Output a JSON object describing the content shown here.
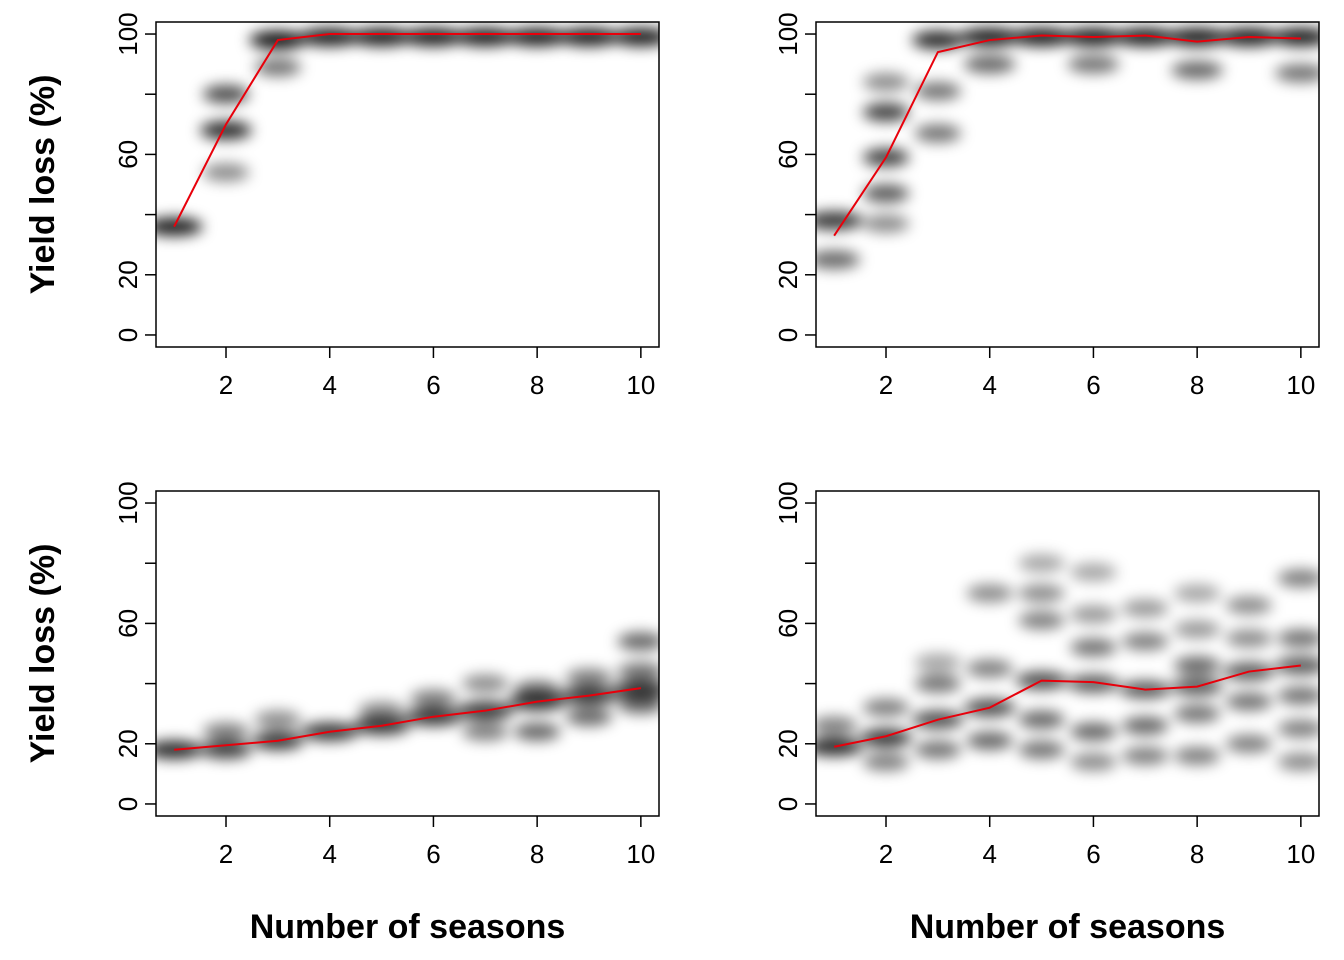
{
  "colors": {
    "line": "#e8000b",
    "density": "#000000",
    "axis": "#000000",
    "background": "#ffffff"
  },
  "chart_data": [
    {
      "type": "line",
      "panel": "top-left",
      "xlabel": "",
      "ylabel": "Yield loss (%)",
      "xlim": [
        0.65,
        10.35
      ],
      "ylim": [
        -4,
        104
      ],
      "xticks": [
        2,
        4,
        6,
        8,
        10
      ],
      "yticks": [
        0,
        20,
        60,
        100
      ],
      "yminorticks": [
        40,
        80
      ],
      "grid": false,
      "background": "grayscale density of simulated yield loss per season",
      "series": [
        {
          "x": [
            1,
            2,
            3,
            4,
            5,
            6,
            7,
            8,
            9,
            10
          ],
          "values": [
            36,
            70,
            98,
            100,
            100,
            100,
            100,
            100,
            100,
            100
          ]
        }
      ]
    },
    {
      "type": "line",
      "panel": "top-right",
      "xlabel": "",
      "ylabel": "",
      "xlim": [
        0.65,
        10.35
      ],
      "ylim": [
        -4,
        104
      ],
      "xticks": [
        2,
        4,
        6,
        8,
        10
      ],
      "yticks": [
        0,
        20,
        60,
        100
      ],
      "yminorticks": [
        40,
        80
      ],
      "grid": false,
      "background": "grayscale density of simulated yield loss per season",
      "series": [
        {
          "x": [
            1,
            2,
            3,
            4,
            5,
            6,
            7,
            8,
            9,
            10
          ],
          "values": [
            33,
            59,
            94,
            98,
            99.5,
            99,
            99.5,
            97.5,
            99,
            98.5
          ]
        }
      ]
    },
    {
      "type": "line",
      "panel": "bottom-left",
      "xlabel": "Number of seasons",
      "ylabel": "Yield loss (%)",
      "xlim": [
        0.65,
        10.35
      ],
      "ylim": [
        -4,
        104
      ],
      "xticks": [
        2,
        4,
        6,
        8,
        10
      ],
      "yticks": [
        0,
        20,
        60,
        100
      ],
      "yminorticks": [
        40,
        80
      ],
      "grid": false,
      "background": "grayscale density of simulated yield loss per season",
      "series": [
        {
          "x": [
            1,
            2,
            3,
            4,
            5,
            6,
            7,
            8,
            9,
            10
          ],
          "values": [
            18,
            19.5,
            21,
            24,
            26,
            29,
            31,
            34,
            36,
            38.5
          ]
        }
      ]
    },
    {
      "type": "line",
      "panel": "bottom-right",
      "xlabel": "Number of seasons",
      "ylabel": "",
      "xlim": [
        0.65,
        10.35
      ],
      "ylim": [
        -4,
        104
      ],
      "xticks": [
        2,
        4,
        6,
        8,
        10
      ],
      "yticks": [
        0,
        20,
        60,
        100
      ],
      "yminorticks": [
        40,
        80
      ],
      "grid": false,
      "background": "grayscale density of simulated yield loss per season",
      "series": [
        {
          "x": [
            1,
            2,
            3,
            4,
            5,
            6,
            7,
            8,
            9,
            10
          ],
          "values": [
            19,
            22.5,
            28,
            32,
            41,
            40.5,
            38,
            39,
            44,
            46
          ]
        }
      ]
    }
  ]
}
